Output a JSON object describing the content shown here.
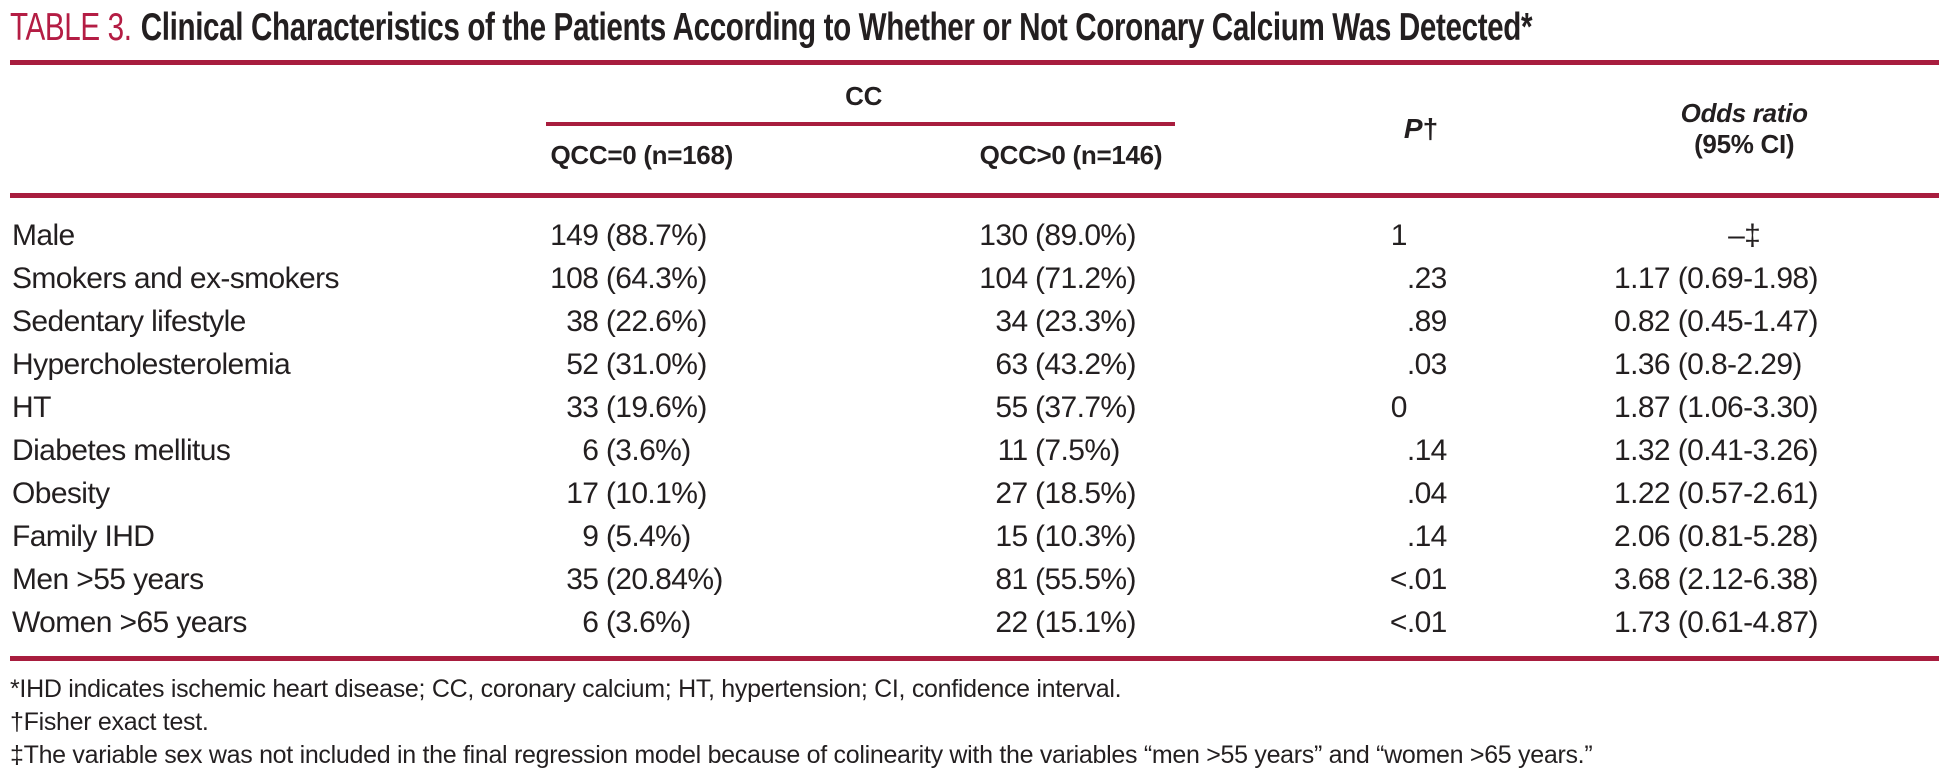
{
  "colors": {
    "rule": "#a81d3e",
    "title_red": "#b41d44",
    "ink": "#231f20"
  },
  "title": {
    "label": "TABLE 3.",
    "text": "Clinical Characteristics of the Patients According to Whether or Not Coronary Calcium Was Detected*"
  },
  "table": {
    "group_header": "CC",
    "columns": {
      "qcc0": "QCC=0 (n=168)",
      "qcc1": "QCC>0 (n=146)",
      "p_label": "P",
      "p_dagger": "†",
      "odds_line1": "Odds ratio",
      "odds_line2": "(95% CI)"
    },
    "rows": [
      {
        "label": "Male",
        "qcc0_n": "149",
        "qcc0_pct": "(88.7%)",
        "qcc1_n": "130",
        "qcc1_pct": "(89.0%)",
        "p_int": "1",
        "p_frac": "",
        "or": "–‡"
      },
      {
        "label": "Smokers and ex-smokers",
        "qcc0_n": "108",
        "qcc0_pct": "(64.3%)",
        "qcc1_n": "104",
        "qcc1_pct": "(71.2%)",
        "p_int": "",
        "p_frac": ".23",
        "or": "1.17 (0.69-1.98)"
      },
      {
        "label": "Sedentary lifestyle",
        "qcc0_n": "38",
        "qcc0_pct": "(22.6%)",
        "qcc1_n": "34",
        "qcc1_pct": "(23.3%)",
        "p_int": "",
        "p_frac": ".89",
        "or": "0.82 (0.45-1.47)"
      },
      {
        "label": "Hypercholesterolemia",
        "qcc0_n": "52",
        "qcc0_pct": "(31.0%)",
        "qcc1_n": "63",
        "qcc1_pct": "(43.2%)",
        "p_int": "",
        "p_frac": ".03",
        "or": "1.36 (0.8-2.29)"
      },
      {
        "label": "HT",
        "qcc0_n": "33",
        "qcc0_pct": "(19.6%)",
        "qcc1_n": "55",
        "qcc1_pct": "(37.7%)",
        "p_int": "0",
        "p_frac": "",
        "or": "1.87 (1.06-3.30)"
      },
      {
        "label": "Diabetes mellitus",
        "qcc0_n": "6",
        "qcc0_pct": "(3.6%)",
        "qcc1_n": "11",
        "qcc1_pct": "(7.5%)",
        "p_int": "",
        "p_frac": ".14",
        "or": "1.32 (0.41-3.26)"
      },
      {
        "label": "Obesity",
        "qcc0_n": "17",
        "qcc0_pct": "(10.1%)",
        "qcc1_n": "27",
        "qcc1_pct": "(18.5%)",
        "p_int": "",
        "p_frac": ".04",
        "or": "1.22 (0.57-2.61)"
      },
      {
        "label": "Family IHD",
        "qcc0_n": "9",
        "qcc0_pct": "(5.4%)",
        "qcc1_n": "15",
        "qcc1_pct": "(10.3%)",
        "p_int": "",
        "p_frac": ".14",
        "or": "2.06 (0.81-5.28)"
      },
      {
        "label": "Men >55 years",
        "qcc0_n": "35",
        "qcc0_pct": "(20.84%)",
        "qcc1_n": "81",
        "qcc1_pct": "(55.5%)",
        "p_int": "<",
        "p_frac": ".01",
        "or": "3.68 (2.12-6.38)"
      },
      {
        "label": "Women >65 years",
        "qcc0_n": "6",
        "qcc0_pct": "(3.6%)",
        "qcc1_n": "22",
        "qcc1_pct": "(15.1%)",
        "p_int": "<",
        "p_frac": ".01",
        "or": "1.73 (0.61-4.87)"
      }
    ]
  },
  "footnotes": [
    "*IHD indicates ischemic heart disease; CC, coronary calcium; HT, hypertension; CI, confidence interval.",
    "†Fisher exact test.",
    "‡The variable sex was not included in the final regression model because of colinearity with the variables “men >55 years” and “women >65 years.”"
  ]
}
